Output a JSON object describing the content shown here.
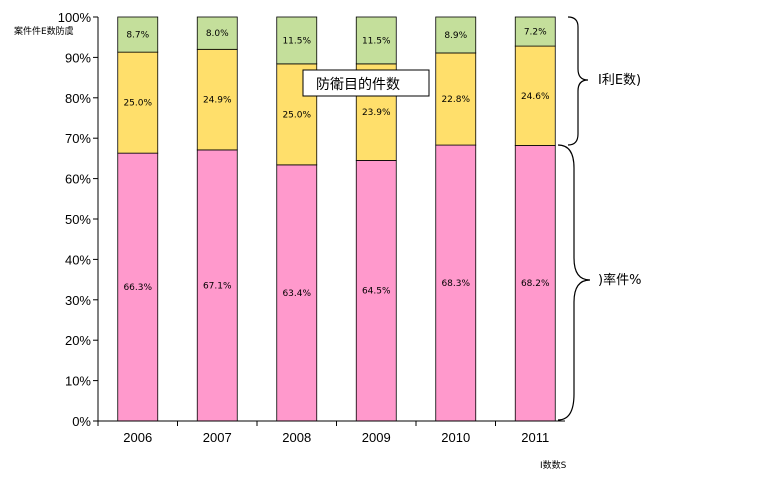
{
  "chart_data": {
    "type": "bar",
    "stacked": true,
    "categories": [
      "2006",
      "2007",
      "2008",
      "2009",
      "2010",
      "2011"
    ],
    "series": [
      {
        "values": [
          66.3,
          67.1,
          63.4,
          64.5,
          68.3,
          68.2
        ],
        "labels": [
          "66.3%",
          "67.1%",
          "63.4%",
          "64.5%",
          "68.3%",
          "68.2%"
        ],
        "color": "#ff99cc"
      },
      {
        "values": [
          25.0,
          24.9,
          25.0,
          23.9,
          22.8,
          24.6
        ],
        "labels": [
          "25.0%",
          "24.9%",
          "25.0%",
          "23.9%",
          "22.8%",
          "24.6%"
        ],
        "color": "#ffdf6b"
      },
      {
        "values": [
          8.7,
          8.0,
          11.5,
          11.5,
          8.9,
          7.2
        ],
        "labels": [
          "8.7%",
          "8.0%",
          "11.5%",
          "11.5%",
          "8.9%",
          "7.2%"
        ],
        "color": "#c4df9b"
      }
    ],
    "yticks": [
      "0%",
      "10%",
      "20%",
      "30%",
      "40%",
      "50%",
      "60%",
      "70%",
      "80%",
      "90%",
      "100%"
    ],
    "ylim": [
      0,
      100
    ],
    "ylabel": "案件件E数防虞",
    "xlabel": "I数数S",
    "annotation": "防衛目的件数",
    "brace_labels": [
      "I利E数)",
      ")率件%"
    ],
    "grid": false
  }
}
